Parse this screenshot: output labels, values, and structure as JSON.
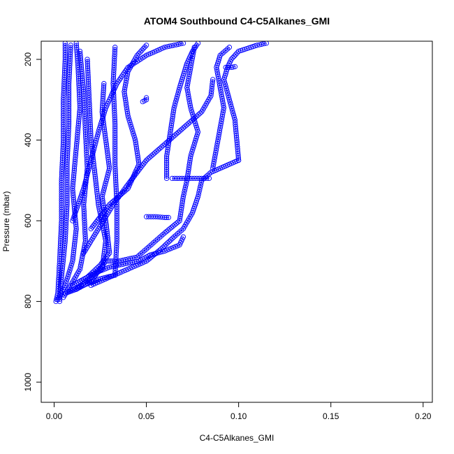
{
  "chart_data": {
    "type": "scatter",
    "title": "ATOM4 Southbound C4-C5Alkanes_GMI",
    "xlabel": "C4-C5Alkanes_GMI",
    "ylabel": "Pressure (mbar)",
    "xlim": [
      -0.007,
      0.205
    ],
    "ylim": [
      1050,
      155
    ],
    "y_reversed": true,
    "x_ticks": [
      "0.00",
      "0.05",
      "0.10",
      "0.15",
      "0.20"
    ],
    "x_tick_values": [
      0.0,
      0.05,
      0.1,
      0.15,
      0.2
    ],
    "y_ticks": [
      "200",
      "400",
      "600",
      "800",
      "1000"
    ],
    "y_tick_values": [
      200,
      400,
      600,
      800,
      1000
    ],
    "grid": false,
    "legend": "none",
    "point_color": "#0000FF",
    "marker": "open-circle",
    "series": [
      {
        "points": [
          [
            0.001,
            800
          ],
          [
            0.002,
            780
          ],
          [
            0.003,
            700
          ],
          [
            0.004,
            600
          ],
          [
            0.004,
            500
          ],
          [
            0.005,
            400
          ],
          [
            0.005,
            300
          ],
          [
            0.006,
            200
          ],
          [
            0.006,
            160
          ]
        ]
      },
      {
        "points": [
          [
            0.003,
            800
          ],
          [
            0.004,
            740
          ],
          [
            0.006,
            650
          ],
          [
            0.007,
            560
          ],
          [
            0.007,
            460
          ],
          [
            0.008,
            360
          ],
          [
            0.008,
            260
          ],
          [
            0.009,
            165
          ]
        ]
      },
      {
        "points": [
          [
            0.002,
            795
          ],
          [
            0.006,
            760
          ],
          [
            0.01,
            700
          ],
          [
            0.012,
            620
          ],
          [
            0.01,
            520
          ],
          [
            0.012,
            420
          ],
          [
            0.014,
            320
          ],
          [
            0.013,
            220
          ],
          [
            0.012,
            160
          ]
        ]
      },
      {
        "points": [
          [
            0.005,
            790
          ],
          [
            0.009,
            760
          ],
          [
            0.014,
            720
          ],
          [
            0.017,
            650
          ],
          [
            0.016,
            560
          ],
          [
            0.018,
            470
          ],
          [
            0.017,
            380
          ],
          [
            0.016,
            280
          ],
          [
            0.014,
            180
          ]
        ]
      },
      {
        "points": [
          [
            0.006,
            780
          ],
          [
            0.012,
            770
          ],
          [
            0.02,
            740
          ],
          [
            0.026,
            720
          ],
          [
            0.028,
            650
          ],
          [
            0.024,
            560
          ],
          [
            0.022,
            480
          ],
          [
            0.02,
            400
          ],
          [
            0.019,
            300
          ],
          [
            0.018,
            200
          ]
        ]
      },
      {
        "points": [
          [
            0.008,
            775
          ],
          [
            0.016,
            760
          ],
          [
            0.024,
            745
          ],
          [
            0.033,
            735
          ],
          [
            0.034,
            650
          ],
          [
            0.034,
            560
          ],
          [
            0.033,
            460
          ],
          [
            0.033,
            360
          ],
          [
            0.032,
            260
          ],
          [
            0.033,
            170
          ]
        ]
      },
      {
        "points": [
          [
            0.01,
            760
          ],
          [
            0.018,
            740
          ],
          [
            0.025,
            710
          ],
          [
            0.03,
            680
          ],
          [
            0.028,
            600
          ],
          [
            0.026,
            540
          ],
          [
            0.03,
            470
          ],
          [
            0.028,
            400
          ],
          [
            0.026,
            330
          ],
          [
            0.027,
            260
          ]
        ]
      },
      {
        "points": [
          [
            0.012,
            770
          ],
          [
            0.02,
            750
          ],
          [
            0.028,
            700
          ],
          [
            0.035,
            700
          ],
          [
            0.045,
            690
          ],
          [
            0.05,
            670
          ],
          [
            0.055,
            650
          ],
          [
            0.06,
            630
          ],
          [
            0.068,
            600
          ],
          [
            0.07,
            540
          ],
          [
            0.072,
            500
          ],
          [
            0.074,
            440
          ],
          [
            0.078,
            380
          ],
          [
            0.074,
            320
          ],
          [
            0.072,
            270
          ],
          [
            0.074,
            220
          ],
          [
            0.076,
            170
          ]
        ]
      },
      {
        "points": [
          [
            0.014,
            750
          ],
          [
            0.022,
            730
          ],
          [
            0.03,
            715
          ],
          [
            0.04,
            705
          ],
          [
            0.046,
            700
          ],
          [
            0.052,
            685
          ],
          [
            0.06,
            675
          ],
          [
            0.068,
            660
          ],
          [
            0.07,
            640
          ]
        ]
      },
      {
        "points": [
          [
            0.02,
            760
          ],
          [
            0.03,
            740
          ],
          [
            0.04,
            720
          ],
          [
            0.05,
            700
          ],
          [
            0.058,
            670
          ],
          [
            0.065,
            640
          ],
          [
            0.07,
            620
          ],
          [
            0.075,
            580
          ],
          [
            0.078,
            540
          ],
          [
            0.08,
            500
          ],
          [
            0.085,
            480
          ],
          [
            0.09,
            470
          ],
          [
            0.095,
            460
          ],
          [
            0.1,
            450
          ]
        ]
      },
      {
        "points": [
          [
            0.064,
            495
          ],
          [
            0.068,
            495
          ],
          [
            0.072,
            495
          ],
          [
            0.076,
            495
          ],
          [
            0.08,
            495
          ],
          [
            0.084,
            495
          ]
        ]
      },
      {
        "points": [
          [
            0.061,
            495
          ],
          [
            0.061,
            440
          ],
          [
            0.063,
            380
          ],
          [
            0.065,
            320
          ],
          [
            0.068,
            270
          ],
          [
            0.07,
            240
          ],
          [
            0.072,
            210
          ],
          [
            0.075,
            180
          ],
          [
            0.078,
            160
          ]
        ]
      },
      {
        "points": [
          [
            0.1,
            450
          ],
          [
            0.099,
            400
          ],
          [
            0.098,
            350
          ],
          [
            0.095,
            300
          ],
          [
            0.092,
            250
          ],
          [
            0.094,
            220
          ],
          [
            0.096,
            200
          ],
          [
            0.1,
            180
          ],
          [
            0.11,
            165
          ],
          [
            0.115,
            160
          ]
        ]
      },
      {
        "points": [
          [
            0.086,
            470
          ],
          [
            0.088,
            420
          ],
          [
            0.09,
            370
          ],
          [
            0.092,
            320
          ],
          [
            0.09,
            270
          ],
          [
            0.088,
            220
          ],
          [
            0.09,
            190
          ],
          [
            0.095,
            170
          ]
        ]
      },
      {
        "points": [
          [
            0.05,
            590
          ],
          [
            0.055,
            590
          ],
          [
            0.06,
            592
          ],
          [
            0.062,
            592
          ]
        ]
      },
      {
        "points": [
          [
            0.048,
            305
          ],
          [
            0.05,
            300
          ],
          [
            0.05,
            295
          ]
        ]
      },
      {
        "points": [
          [
            0.093,
            220
          ],
          [
            0.096,
            220
          ],
          [
            0.098,
            218
          ]
        ]
      },
      {
        "points": [
          [
            0.02,
            620
          ],
          [
            0.03,
            560
          ],
          [
            0.04,
            520
          ],
          [
            0.046,
            460
          ],
          [
            0.044,
            400
          ],
          [
            0.04,
            340
          ],
          [
            0.038,
            280
          ],
          [
            0.04,
            230
          ],
          [
            0.045,
            190
          ],
          [
            0.05,
            165
          ]
        ]
      },
      {
        "points": [
          [
            0.016,
            680
          ],
          [
            0.024,
            620
          ],
          [
            0.032,
            560
          ],
          [
            0.04,
            510
          ],
          [
            0.05,
            450
          ],
          [
            0.06,
            410
          ],
          [
            0.07,
            370
          ],
          [
            0.08,
            330
          ],
          [
            0.085,
            290
          ],
          [
            0.086,
            250
          ]
        ]
      },
      {
        "points": [
          [
            0.01,
            600
          ],
          [
            0.016,
            520
          ],
          [
            0.02,
            450
          ],
          [
            0.024,
            380
          ],
          [
            0.028,
            320
          ],
          [
            0.034,
            260
          ],
          [
            0.04,
            220
          ],
          [
            0.05,
            190
          ],
          [
            0.06,
            170
          ],
          [
            0.07,
            160
          ]
        ]
      }
    ]
  }
}
